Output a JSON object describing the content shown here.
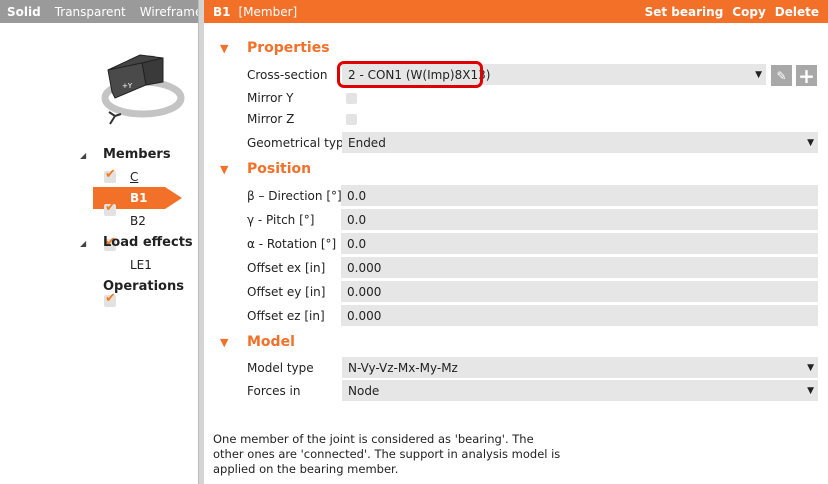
{
  "view_modes": [
    "Solid",
    "Transparent",
    "Wireframe"
  ],
  "header": {
    "title": "B1",
    "type": "[Member]",
    "actions": [
      "Set bearing",
      "Copy",
      "Delete"
    ]
  },
  "tree": {
    "members_label": "Members",
    "members": [
      "C",
      "B1",
      "B2"
    ],
    "load_effects_label": "Load effects",
    "load_effects": [
      "LE1"
    ],
    "operations_label": "Operations",
    "selected": "B1"
  },
  "properties": {
    "title": "Properties",
    "cross_section_label": "Cross-section",
    "cross_section_value": "2 - CON1 (W(Imp)8X13)",
    "mirror_y_label": "Mirror Y",
    "mirror_y": false,
    "mirror_z_label": "Mirror Z",
    "mirror_z": false,
    "geom_type_label": "Geometrical type",
    "geom_type_value": "Ended"
  },
  "position": {
    "title": "Position",
    "rows": [
      {
        "label": "β – Direction [°]",
        "value": "0.0"
      },
      {
        "label": "γ - Pitch [°]",
        "value": "0.0"
      },
      {
        "label": "α - Rotation [°]",
        "value": "0.0"
      },
      {
        "label": "Offset ex [in]",
        "value": "0.000"
      },
      {
        "label": "Offset ey [in]",
        "value": "0.000"
      },
      {
        "label": "Offset ez [in]",
        "value": "0.000"
      }
    ]
  },
  "model": {
    "title": "Model",
    "model_type_label": "Model type",
    "model_type_value": "N-Vy-Vz-Mx-My-Mz",
    "forces_in_label": "Forces in",
    "forces_in_value": "Node"
  },
  "note": "One member of the joint is considered as 'bearing'. The other ones are 'connected'. The support in analysis model is applied on the bearing member.",
  "colors": {
    "accent": "#f37029",
    "highlight": "#e00000"
  }
}
